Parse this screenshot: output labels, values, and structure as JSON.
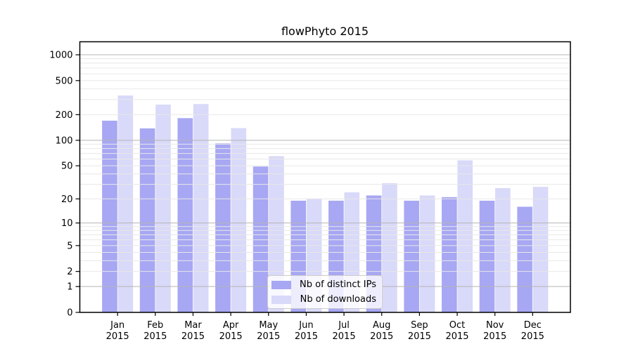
{
  "title": "flowPhyto 2015",
  "colors": {
    "background": "#ffffff",
    "bar_distinct_ips": "#a7a7f3",
    "bar_downloads": "#d9d9f9",
    "grid_major": "#b5b5b5",
    "grid_minor": "#e8e8e8",
    "spine": "#000000",
    "text": "#000000",
    "legend_border": "#cccccc"
  },
  "chart_data": {
    "type": "bar",
    "title": "flowPhyto 2015",
    "months": [
      "Jan",
      "Feb",
      "Mar",
      "Apr",
      "May",
      "Jun",
      "Jul",
      "Aug",
      "Sep",
      "Oct",
      "Nov",
      "Dec"
    ],
    "year_label": "2015",
    "categories": [
      "Jan 2015",
      "Feb 2015",
      "Mar 2015",
      "Apr 2015",
      "May 2015",
      "Jun 2015",
      "Jul 2015",
      "Aug 2015",
      "Sep 2015",
      "Oct 2015",
      "Nov 2015",
      "Dec 2015"
    ],
    "series": [
      {
        "name": "Nb of distinct IPs",
        "color": "#a7a7f3",
        "values": [
          170,
          138,
          182,
          92,
          49,
          19,
          19,
          22,
          19,
          21,
          19,
          16
        ]
      },
      {
        "name": "Nb of downloads",
        "color": "#d9d9f9",
        "values": [
          335,
          262,
          266,
          139,
          65,
          20,
          24,
          31,
          22,
          58,
          27,
          28
        ]
      }
    ],
    "xlabel": "",
    "ylabel": "",
    "yscale": "log1p",
    "ylim": [
      0,
      1418
    ],
    "y_ticks": [
      0,
      1,
      2,
      5,
      10,
      20,
      50,
      100,
      200,
      500,
      1000
    ],
    "y_tick_labels": [
      "0",
      "1",
      "2",
      "5",
      "10",
      "20",
      "50",
      "100",
      "200",
      "500",
      "1000"
    ],
    "grid_major_lines": [
      1,
      10,
      100,
      1000
    ],
    "grid_minor_bases": [
      1,
      10,
      100
    ],
    "grid": "on",
    "legend_position": "lower-center-inside"
  }
}
